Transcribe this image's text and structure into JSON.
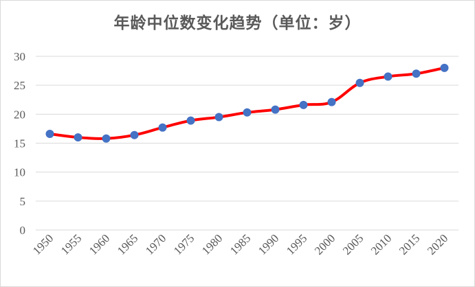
{
  "chart_data": {
    "type": "line",
    "title": "年龄中位数变化趋势（单位：岁）",
    "x": [
      "1950",
      "1955",
      "1960",
      "1965",
      "1970",
      "1975",
      "1980",
      "1985",
      "1990",
      "1995",
      "2000",
      "2005",
      "2010",
      "2015",
      "2020"
    ],
    "series": [
      {
        "values": [
          16.6,
          16.0,
          15.8,
          16.4,
          17.7,
          18.9,
          19.5,
          20.3,
          20.8,
          21.6,
          22.1,
          25.4,
          26.5,
          27.0,
          28.0
        ]
      }
    ],
    "ylim": [
      0,
      30
    ],
    "yticks": [
      "0",
      "5",
      "10",
      "15",
      "20",
      "25",
      "30"
    ],
    "grid": true,
    "legend": "none",
    "colors": {
      "line": "#ff0000",
      "marker": "#4472c4",
      "grid": "#d9d9d9",
      "text": "#595959"
    }
  }
}
